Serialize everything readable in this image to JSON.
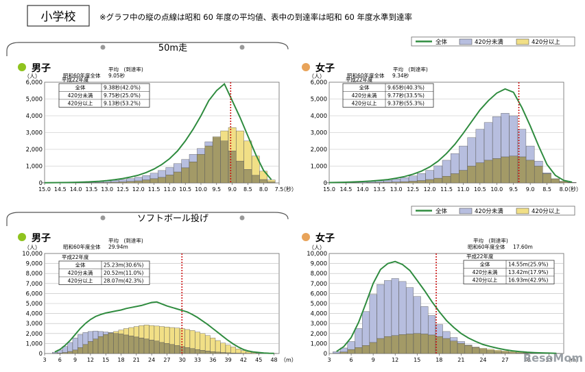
{
  "header": {
    "title": "小学校",
    "note": "※グラフ中の縦の点線は昭和 60 年度の平均値、表中の到達率は昭和 60 年度水準到達率"
  },
  "sections": [
    {
      "title": "50m走"
    },
    {
      "title": "ソフトボール投げ"
    }
  ],
  "legend": {
    "total": "全体",
    "under": "420分未満",
    "over": "420分以上"
  },
  "colors": {
    "line": "#2e8b3e",
    "under": "#b7bedf",
    "over": "#f1df86",
    "overlap": "#a39a67",
    "refline": "#cc1010",
    "boy_dot": "#8fc31f",
    "girl_dot": "#e8a35a"
  },
  "watermark": "ReseMom",
  "chart_data": [
    {
      "type": "bar",
      "gender": "男子",
      "unit": "（人）",
      "xunit": "（秒）",
      "x": [
        15.0,
        14.75,
        14.5,
        14.25,
        14.0,
        13.75,
        13.5,
        13.25,
        13.0,
        12.75,
        12.5,
        12.25,
        12.0,
        11.75,
        11.5,
        11.25,
        11.0,
        10.75,
        10.5,
        10.25,
        10.0,
        9.75,
        9.5,
        9.25,
        9.0,
        8.75,
        8.5,
        8.25,
        8.0,
        7.75
      ],
      "xticks": [
        "15.0",
        "14.5",
        "14.0",
        "13.5",
        "13.0",
        "12.5",
        "12.0",
        "11.5",
        "11.0",
        "10.5",
        "10.0",
        "9.5",
        "9.0",
        "8.5",
        "8.0",
        "7.5"
      ],
      "xlim": [
        15.0,
        7.5
      ],
      "ylim": [
        0,
        6000
      ],
      "yticks": [
        "0",
        "1,000",
        "2,000",
        "3,000",
        "4,000",
        "5,000",
        "6,000"
      ],
      "series": [
        {
          "name": "全体",
          "values": [
            10,
            15,
            20,
            25,
            35,
            50,
            70,
            100,
            140,
            190,
            260,
            350,
            460,
            620,
            830,
            1100,
            1450,
            1900,
            2500,
            3200,
            4000,
            4900,
            5500,
            5900,
            4900,
            3900,
            2800,
            1700,
            750,
            200
          ]
        },
        {
          "name": "420分未満",
          "values": [
            10,
            15,
            20,
            25,
            30,
            45,
            60,
            80,
            110,
            150,
            200,
            260,
            340,
            440,
            580,
            740,
            920,
            1150,
            1400,
            1700,
            2050,
            2450,
            2700,
            2500,
            1900,
            1300,
            800,
            450,
            200,
            60
          ]
        },
        {
          "name": "420分以上",
          "values": [
            0,
            0,
            0,
            5,
            10,
            10,
            15,
            20,
            30,
            40,
            60,
            90,
            120,
            180,
            250,
            330,
            470,
            650,
            900,
            1250,
            1700,
            2200,
            2750,
            3100,
            3300,
            3100,
            2500,
            1600,
            700,
            180
          ]
        }
      ],
      "refline": 9.05,
      "ref_label": "昭和60年度全体",
      "ref_value": "9.05秒",
      "header_label": "平均　(到達率)",
      "table": {
        "caption": "平成22年度",
        "rows": [
          {
            "label": "全体",
            "value": "9.38秒(42.0%)"
          },
          {
            "label": "420分未満",
            "value": "9.75秒(25.0%)"
          },
          {
            "label": "420分以上",
            "value": "9.13秒(53.2%)"
          }
        ]
      }
    },
    {
      "type": "bar",
      "gender": "女子",
      "unit": "（人）",
      "xunit": "（秒）",
      "x": [
        15.0,
        14.75,
        14.5,
        14.25,
        14.0,
        13.75,
        13.5,
        13.25,
        13.0,
        12.75,
        12.5,
        12.25,
        12.0,
        11.75,
        11.5,
        11.25,
        11.0,
        10.75,
        10.5,
        10.25,
        10.0,
        9.75,
        9.5,
        9.25,
        9.0,
        8.75,
        8.5,
        8.25,
        8.0,
        7.75
      ],
      "xticks": [
        "15.0",
        "14.5",
        "14.0",
        "13.5",
        "13.0",
        "12.5",
        "12.0",
        "11.5",
        "11.0",
        "10.5",
        "10.0",
        "9.5",
        "9.0",
        "8.5",
        "8.0"
      ],
      "xlim": [
        15.0,
        8.0
      ],
      "ylim": [
        0,
        6000
      ],
      "yticks": [
        "0",
        "1,000",
        "2,000",
        "3,000",
        "4,000",
        "5,000",
        "6,000"
      ],
      "series": [
        {
          "name": "全体",
          "values": [
            20,
            30,
            40,
            60,
            80,
            110,
            150,
            200,
            280,
            380,
            520,
            700,
            950,
            1300,
            1750,
            2300,
            2950,
            3650,
            4350,
            4900,
            5350,
            5600,
            5400,
            4500,
            3400,
            2200,
            1100,
            450,
            150,
            50
          ]
        },
        {
          "name": "420分未満",
          "values": [
            20,
            30,
            40,
            50,
            70,
            90,
            120,
            160,
            230,
            310,
            420,
            560,
            750,
            1020,
            1350,
            1750,
            2200,
            2700,
            3200,
            3600,
            3950,
            4150,
            4000,
            3200,
            2200,
            1300,
            600,
            220,
            60,
            20
          ]
        },
        {
          "name": "420分以上",
          "values": [
            0,
            0,
            0,
            10,
            10,
            20,
            30,
            40,
            50,
            70,
            100,
            140,
            200,
            280,
            400,
            550,
            750,
            1000,
            1200,
            1350,
            1450,
            1550,
            1600,
            1550,
            1350,
            1000,
            550,
            250,
            100,
            30
          ]
        }
      ],
      "refline": 9.34,
      "ref_label": "昭和60年度全体",
      "ref_value": "9.34秒",
      "header_label": "平均　(到達率)",
      "table": {
        "caption": "平成22年度",
        "rows": [
          {
            "label": "全体",
            "value": "9.65秒(40.3%)"
          },
          {
            "label": "420分未満",
            "value": "9.77秒(33.5%)"
          },
          {
            "label": "420分以上",
            "value": "9.37秒(55.3%)"
          }
        ]
      }
    },
    {
      "type": "bar",
      "gender": "男子",
      "unit": "（人）",
      "xunit": "（m）",
      "x": [
        5,
        6,
        7,
        8,
        9,
        10,
        11,
        12,
        13,
        14,
        15,
        16,
        17,
        18,
        19,
        20,
        21,
        22,
        23,
        24,
        25,
        26,
        27,
        28,
        29,
        30,
        31,
        32,
        33,
        34,
        35,
        36,
        37,
        38,
        39,
        40,
        41,
        42,
        43,
        44,
        45,
        46,
        47,
        48
      ],
      "xticks": [
        "3",
        "6",
        "9",
        "12",
        "15",
        "18",
        "21",
        "24",
        "27",
        "30",
        "33",
        "36",
        "39",
        "42",
        "45",
        "48"
      ],
      "xlim": [
        3,
        49
      ],
      "ylim": [
        0,
        10000
      ],
      "yticks": [
        "0",
        "1,000",
        "2,000",
        "3,000",
        "4,000",
        "5,000",
        "6,000",
        "7,000",
        "8,000",
        "9,000",
        "10,000"
      ],
      "series": [
        {
          "name": "全体",
          "values": [
            150,
            400,
            800,
            1300,
            1900,
            2500,
            3000,
            3400,
            3700,
            3900,
            4050,
            4150,
            4250,
            4350,
            4500,
            4600,
            4700,
            4800,
            4950,
            5100,
            5150,
            4950,
            4750,
            4600,
            4450,
            4300,
            4150,
            3900,
            3600,
            3250,
            2900,
            2500,
            2100,
            1700,
            1300,
            950,
            650,
            400,
            250,
            150,
            100,
            50,
            30,
            20
          ]
        },
        {
          "name": "420分未満",
          "values": [
            130,
            350,
            700,
            1100,
            1550,
            1900,
            2100,
            2200,
            2250,
            2200,
            2150,
            2100,
            2000,
            1950,
            1850,
            1750,
            1650,
            1550,
            1450,
            1350,
            1250,
            1100,
            1000,
            900,
            800,
            700,
            600,
            500,
            400,
            320,
            250,
            190,
            140,
            100,
            70,
            50,
            30,
            20,
            10,
            5,
            5,
            0,
            0,
            0
          ]
        },
        {
          "name": "420分以上",
          "values": [
            20,
            50,
            100,
            200,
            350,
            600,
            900,
            1200,
            1450,
            1700,
            1900,
            2050,
            2200,
            2350,
            2500,
            2600,
            2700,
            2800,
            2850,
            2800,
            2750,
            2700,
            2650,
            2600,
            2550,
            2500,
            2400,
            2300,
            2150,
            2000,
            1800,
            1550,
            1300,
            1050,
            850,
            650,
            450,
            300,
            180,
            100,
            60,
            40,
            20,
            10
          ]
        }
      ],
      "refline": 29.94,
      "ref_label": "昭和60年度全体",
      "ref_value": "29.94m",
      "header_label": "平均　(到達率)",
      "table": {
        "caption": "平成22年度",
        "rows": [
          {
            "label": "全体",
            "value": "25.23m(30.6%)"
          },
          {
            "label": "420分未満",
            "value": "20.52m(11.0%)"
          },
          {
            "label": "420分以上",
            "value": "28.07m(42.3%)"
          }
        ]
      }
    },
    {
      "type": "bar",
      "gender": "女子",
      "unit": "（人）",
      "xunit": "（m）",
      "x": [
        4,
        5,
        6,
        7,
        8,
        9,
        10,
        11,
        12,
        13,
        14,
        15,
        16,
        17,
        18,
        19,
        20,
        21,
        22,
        23,
        24,
        25,
        26,
        27,
        28,
        29,
        30,
        31,
        32,
        33,
        34
      ],
      "xticks": [
        "3",
        "6",
        "9",
        "12",
        "15",
        "18",
        "21",
        "24",
        "27",
        "30",
        "33"
      ],
      "xlim": [
        3,
        35
      ],
      "ylim": [
        0,
        10000
      ],
      "yticks": [
        "0",
        "1,000",
        "2,000",
        "3,000",
        "4,000",
        "5,000",
        "6,000",
        "7,000",
        "8,000",
        "9,000",
        "10,000"
      ],
      "series": [
        {
          "name": "全体",
          "values": [
            200,
            700,
            1600,
            3100,
            5000,
            7000,
            8400,
            9000,
            9200,
            8900,
            8300,
            7300,
            6300,
            5200,
            4200,
            3300,
            2600,
            2000,
            1550,
            1200,
            900,
            700,
            520,
            380,
            270,
            190,
            130,
            90,
            60,
            40,
            20
          ]
        },
        {
          "name": "420分未満",
          "values": [
            180,
            550,
            1200,
            2500,
            4200,
            5900,
            6900,
            7300,
            7500,
            7200,
            6600,
            5700,
            4700,
            3800,
            2900,
            2200,
            1600,
            1200,
            850,
            600,
            420,
            300,
            200,
            140,
            90,
            60,
            40,
            20,
            10,
            5,
            0
          ]
        },
        {
          "name": "420分以上",
          "values": [
            20,
            150,
            400,
            600,
            800,
            1100,
            1500,
            1700,
            1800,
            1900,
            1950,
            2000,
            1950,
            1850,
            1700,
            1500,
            1250,
            1000,
            800,
            650,
            520,
            420,
            330,
            250,
            190,
            140,
            100,
            70,
            50,
            35,
            20
          ]
        }
      ],
      "refline": 17.6,
      "ref_label": "昭和60年度全体",
      "ref_value": "17.60m",
      "header_label": "平均　(到達率)",
      "table": {
        "caption": "平成22年度",
        "rows": [
          {
            "label": "全体",
            "value": "14.55m(25.9%)"
          },
          {
            "label": "420分未満",
            "value": "13.42m(17.9%)"
          },
          {
            "label": "420分以上",
            "value": "16.93m(42.9%)"
          }
        ]
      }
    }
  ]
}
